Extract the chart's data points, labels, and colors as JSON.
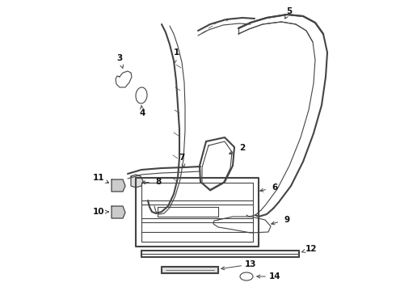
{
  "background_color": "#ffffff",
  "line_color": "#444444",
  "label_color": "#111111",
  "figsize": [
    4.9,
    3.6
  ],
  "dpi": 100,
  "xlim": [
    0,
    490
  ],
  "ylim": [
    0,
    360
  ]
}
